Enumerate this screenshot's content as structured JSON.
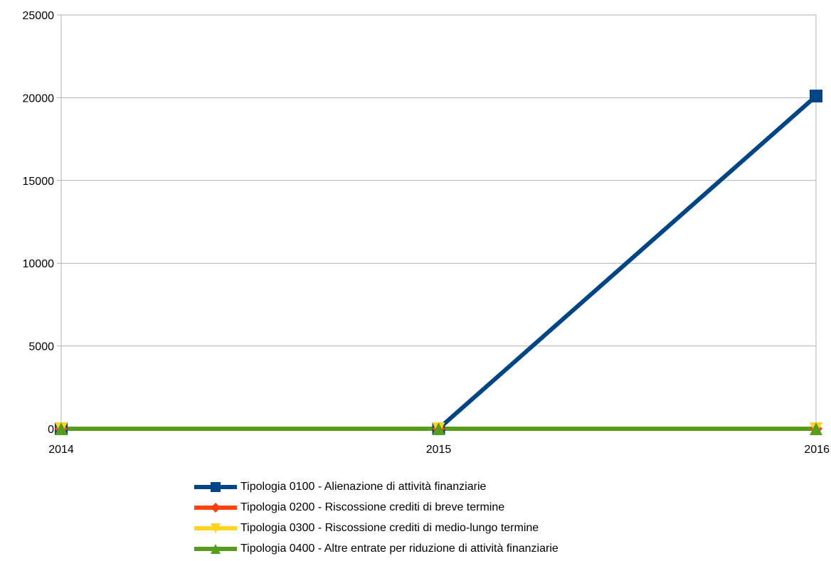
{
  "chart_data": {
    "type": "line",
    "title": "",
    "xlabel": "",
    "ylabel": "",
    "x": [
      "2014",
      "2015",
      "2016"
    ],
    "ylim": [
      0,
      25000
    ],
    "yticks": [
      "0",
      "5000",
      "10000",
      "15000",
      "20000",
      "25000"
    ],
    "grid": true,
    "legend_position": "bottom",
    "series": [
      {
        "name": "Tipologia 0100 - Alienazione di attività finanziarie",
        "values": [
          0,
          0,
          20100
        ],
        "color": "#004586",
        "marker": "square"
      },
      {
        "name": "Tipologia 0200 - Riscossione crediti di breve termine",
        "values": [
          0,
          0,
          0
        ],
        "color": "#ff420e",
        "marker": "diamond"
      },
      {
        "name": "Tipologia 0300 - Riscossione crediti di medio-lungo termine",
        "values": [
          0,
          0,
          0
        ],
        "color": "#ffd320",
        "marker": "triangle-down"
      },
      {
        "name": "Tipologia 0400 - Altre entrate per riduzione di attività finanziarie",
        "values": [
          0,
          0,
          0
        ],
        "color": "#579d1c",
        "marker": "triangle-up"
      }
    ]
  }
}
